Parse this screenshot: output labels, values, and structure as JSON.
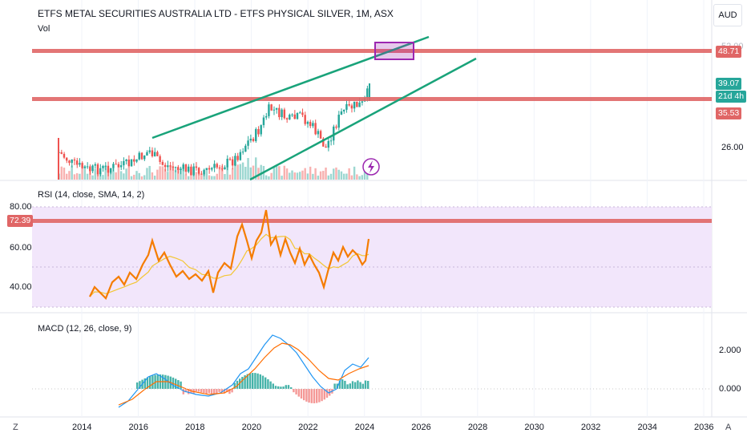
{
  "header": {
    "title": "ETFS METAL SECURITIES AUSTRALIA LTD - ETFS PHYSICAL SILVER, 1M, ASX",
    "vol_label": "Vol",
    "currency_button": "AUD"
  },
  "price_axis": {
    "top_clipped_label": "52.00",
    "bottom_label": "26.00",
    "badges": {
      "upper_line": "48.71",
      "last_price": "39.07",
      "countdown": "21d 4h",
      "lower_line": "35.53"
    }
  },
  "rsi": {
    "label": "RSI (14, close, SMA, 14, 2)",
    "ticks": [
      "80.00",
      "60.00",
      "40.00"
    ],
    "badge": "72.39"
  },
  "macd": {
    "label": "MACD (12, 26, close, 9)",
    "ticks": [
      "2.000",
      "0.000"
    ]
  },
  "time_axis": {
    "years": [
      "2014",
      "2016",
      "2018",
      "2020",
      "2022",
      "2024",
      "2026",
      "2028",
      "2030",
      "2032",
      "2034",
      "2036"
    ]
  },
  "corner_buttons": {
    "left": "Z",
    "right": "A"
  },
  "colors": {
    "red_line": "#e06666",
    "green_trend": "#19a37a",
    "candle_up": "#26a69a",
    "candle_down": "#ef5350",
    "rsi_line": "#f57c00",
    "rsi_sma": "#f3c634",
    "rsi_band": "#f2e6fb",
    "macd_line": "#2196f3",
    "signal_line": "#ff6d00",
    "highlight_box": "#9c27b0"
  },
  "chart_data": {
    "type": "candlestick",
    "interval": "1M",
    "horizontal_levels": [
      48.71,
      35.53
    ],
    "last_price": 39.07,
    "rsi_last": 72.39,
    "rsi_range": [
      30,
      80
    ],
    "macd_range": [
      0,
      2
    ]
  }
}
